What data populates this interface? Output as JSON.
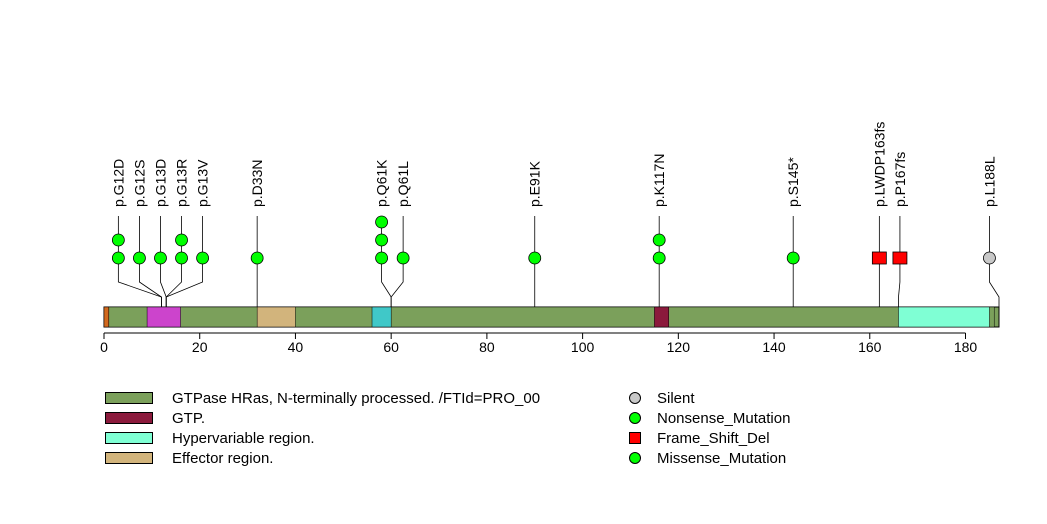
{
  "chart_data": {
    "type": "lollipop",
    "title": "",
    "xlabel": "",
    "ylabel": "",
    "xlim": [
      0,
      187
    ],
    "x_ticks": [
      0,
      20,
      40,
      60,
      80,
      100,
      120,
      140,
      160,
      180
    ],
    "protein_length": 187,
    "backbone_color": "#7BA05B",
    "domains": [
      {
        "name": "GTPase HRas, N-terminally processed. /FTId=PRO_00",
        "start": 1,
        "end": 186,
        "color": "#7BA05B"
      },
      {
        "name": "GTP.",
        "start": 115,
        "end": 118,
        "color": "#8B1A3C"
      },
      {
        "name": "Hypervariable region.",
        "start": 166,
        "end": 185,
        "color": "#7FFFD4"
      },
      {
        "name": "Effector region.",
        "start": 32,
        "end": 40,
        "color": "#D2B47C"
      },
      {
        "name": "",
        "start": 0,
        "end": 1,
        "color": "#D2691E"
      },
      {
        "name": "",
        "start": 9,
        "end": 16,
        "color": "#CC44CC"
      },
      {
        "name": "",
        "start": 56,
        "end": 60,
        "color": "#40C8C8"
      }
    ],
    "mutations": [
      {
        "label": "p.G12D",
        "position": 12,
        "label_x": 3,
        "count": 2,
        "type": "Missense_Mutation"
      },
      {
        "label": "p.G12S",
        "position": 12,
        "label_x": 7.4,
        "count": 1,
        "type": "Missense_Mutation"
      },
      {
        "label": "p.G13D",
        "position": 13,
        "label_x": 11.8,
        "count": 1,
        "type": "Missense_Mutation"
      },
      {
        "label": "p.G13R",
        "position": 13,
        "label_x": 16.2,
        "count": 2,
        "type": "Missense_Mutation"
      },
      {
        "label": "p.G13V",
        "position": 13,
        "label_x": 20.6,
        "count": 1,
        "type": "Missense_Mutation"
      },
      {
        "label": "p.D33N",
        "position": 32,
        "label_x": 32,
        "count": 1,
        "type": "Missense_Mutation"
      },
      {
        "label": "p.Q61K",
        "position": 60,
        "label_x": 58,
        "count": 3,
        "type": "Missense_Mutation"
      },
      {
        "label": "p.Q61L",
        "position": 60,
        "label_x": 62.5,
        "count": 1,
        "type": "Missense_Mutation"
      },
      {
        "label": "p.E91K",
        "position": 90,
        "label_x": 90,
        "count": 1,
        "type": "Missense_Mutation"
      },
      {
        "label": "p.K117N",
        "position": 116,
        "label_x": 116,
        "count": 2,
        "type": "Missense_Mutation"
      },
      {
        "label": "p.S145*",
        "position": 144,
        "label_x": 144,
        "count": 1,
        "type": "Nonsense_Mutation"
      },
      {
        "label": "p.LWDP163fs",
        "position": 162,
        "label_x": 162,
        "count": 1,
        "type": "Frame_Shift_Del"
      },
      {
        "label": "p.P167fs",
        "position": 166,
        "label_x": 166.3,
        "count": 1,
        "type": "Frame_Shift_Del"
      },
      {
        "label": "p.L188L",
        "position": 187,
        "label_x": 185,
        "count": 1,
        "type": "Silent"
      }
    ],
    "legend_placement": "bottom",
    "legend_domains": [
      {
        "label": "GTPase HRas, N-terminally processed. /FTId=PRO_00",
        "color": "#7BA05B"
      },
      {
        "label": "GTP.",
        "color": "#8B1A3C"
      },
      {
        "label": "Hypervariable region.",
        "color": "#7FFFD4"
      },
      {
        "label": "Effector region.",
        "color": "#D2B47C"
      }
    ],
    "legend_mutations": [
      {
        "label": "Silent",
        "shape": "circle",
        "color": "#C8C8C8"
      },
      {
        "label": "Nonsense_Mutation",
        "shape": "circle",
        "color": "#00FF00"
      },
      {
        "label": "Frame_Shift_Del",
        "shape": "square",
        "color": "#FF0000"
      },
      {
        "label": "Missense_Mutation",
        "shape": "circle",
        "color": "#00FF00"
      }
    ],
    "mutation_colors": {
      "Missense_Mutation": "#00FF00",
      "Nonsense_Mutation": "#00FF00",
      "Frame_Shift_Del": "#FF0000",
      "Silent": "#C8C8C8"
    }
  }
}
